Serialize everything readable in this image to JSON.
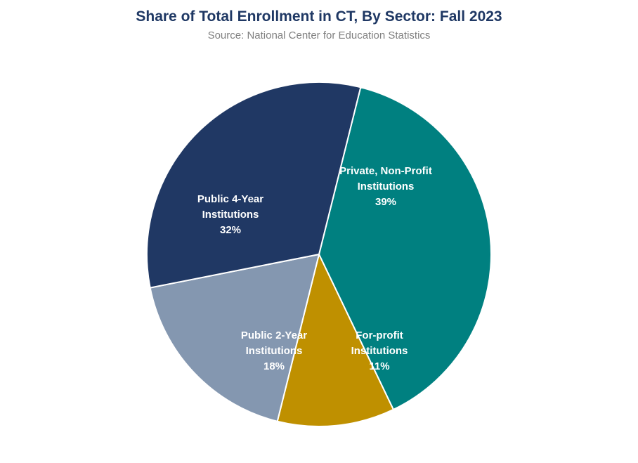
{
  "chart_data": {
    "type": "pie",
    "title": "Share of Total Enrollment in CT, By Sector: Fall 2023",
    "subtitle": "Source: National Center for Education Statistics",
    "slices": [
      {
        "label_lines": [
          "Private, Non-Profit",
          "Institutions"
        ],
        "value_label": "39%",
        "value": 39,
        "color": "#008080"
      },
      {
        "label_lines": [
          "For-profit",
          "Institutions"
        ],
        "value_label": "11%",
        "value": 11,
        "color": "#bf9000"
      },
      {
        "label_lines": [
          "Public 2-Year",
          "Institutions"
        ],
        "value_label": "18%",
        "value": 18,
        "color": "#8497b0"
      },
      {
        "label_lines": [
          "Public 4-Year",
          "Institutions"
        ],
        "value_label": "32%",
        "value": 32,
        "color": "#203864"
      }
    ],
    "legend": "none"
  }
}
